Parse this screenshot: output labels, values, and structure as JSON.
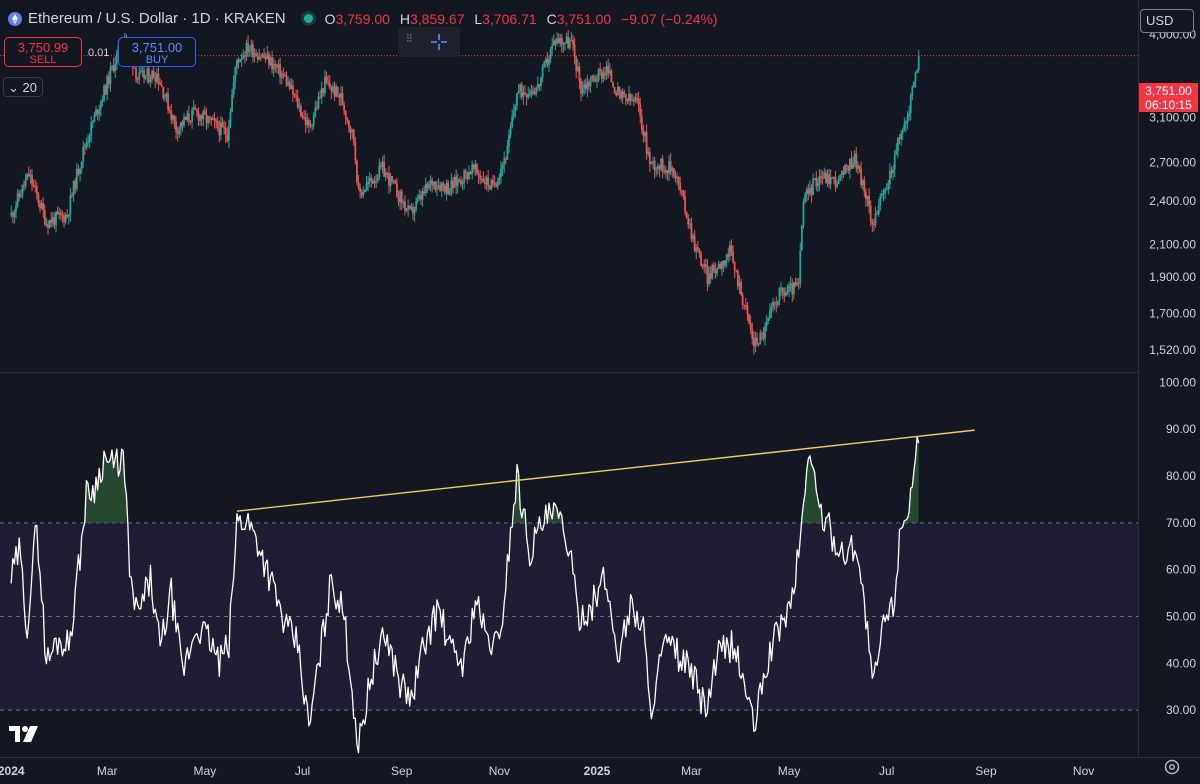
{
  "header": {
    "symbol_title": "Ethereum / U.S. Dollar · 1D · KRAKEN",
    "ohlc": [
      {
        "key": "O",
        "value": "3,759.00"
      },
      {
        "key": "H",
        "value": "3,859.67"
      },
      {
        "key": "L",
        "value": "3,706.71"
      },
      {
        "key": "C",
        "value": "3,751.00"
      },
      {
        "key": "",
        "value": "−9.07 (−0.24%)"
      }
    ]
  },
  "trade": {
    "sell_price": "3,750.99",
    "sell_label": "SELL",
    "buy_price": "3,751.00",
    "buy_label": "BUY",
    "spread": "0.01"
  },
  "interval_badge": "20",
  "currency": "USD",
  "last_price": {
    "price": "3,751.00",
    "countdown": "06:10:15"
  },
  "colors": {
    "up": "#26a69a",
    "down": "#ef5350",
    "rsi_line": "#ffffff",
    "trendline": "#e8d06a",
    "band_fill": "#1f1d33",
    "price_tag": "#f23645"
  },
  "chart_data": [
    {
      "type": "candlestick",
      "title": "Ethereum / U.S. Dollar · 1D · KRAKEN",
      "scale": "log",
      "ylim": [
        1420,
        4450
      ],
      "y_ticks": [
        4000,
        3100,
        2700,
        2400,
        2100,
        1900,
        1700,
        1520
      ],
      "y_tick_labels": [
        "4,000.00",
        "3,100.00",
        "2,700.00",
        "2,400.00",
        "2,100.00",
        "1,900.00",
        "1,700.00",
        "1,520.00"
      ],
      "x_range": [
        "2024-01-01",
        "2025-11-30"
      ],
      "x_ticks": [
        "2024-01-01",
        "2024-03-01",
        "2024-05-01",
        "2024-07-01",
        "2024-09-01",
        "2024-11-01",
        "2025-01-01",
        "2025-03-01",
        "2025-05-01",
        "2025-07-01",
        "2025-09-01",
        "2025-11-01"
      ],
      "x_tick_labels": [
        "2024",
        "Mar",
        "May",
        "Jul",
        "Sep",
        "Nov",
        "2025",
        "Mar",
        "May",
        "Jul",
        "Sep",
        "Nov"
      ],
      "x_tick_bold": [
        true,
        false,
        false,
        false,
        false,
        false,
        true,
        false,
        false,
        false,
        false,
        false
      ],
      "last_price_line": 3751,
      "close_path": [
        [
          "2024-01-01",
          2300
        ],
        [
          "2024-01-12",
          2600
        ],
        [
          "2024-01-23",
          2250
        ],
        [
          "2024-02-05",
          2300
        ],
        [
          "2024-02-15",
          2800
        ],
        [
          "2024-02-29",
          3400
        ],
        [
          "2024-03-12",
          4000
        ],
        [
          "2024-03-20",
          3500
        ],
        [
          "2024-04-01",
          3550
        ],
        [
          "2024-04-13",
          3000
        ],
        [
          "2024-04-25",
          3150
        ],
        [
          "2024-05-05",
          3050
        ],
        [
          "2024-05-15",
          2950
        ],
        [
          "2024-05-21",
          3700
        ],
        [
          "2024-05-28",
          3850
        ],
        [
          "2024-06-10",
          3700
        ],
        [
          "2024-06-20",
          3500
        ],
        [
          "2024-07-05",
          3000
        ],
        [
          "2024-07-15",
          3450
        ],
        [
          "2024-07-25",
          3300
        ],
        [
          "2024-08-02",
          2900
        ],
        [
          "2024-08-05",
          2450
        ],
        [
          "2024-08-20",
          2650
        ],
        [
          "2024-09-06",
          2300
        ],
        [
          "2024-09-20",
          2550
        ],
        [
          "2024-10-01",
          2500
        ],
        [
          "2024-10-15",
          2650
        ],
        [
          "2024-10-28",
          2500
        ],
        [
          "2024-11-06",
          2800
        ],
        [
          "2024-11-12",
          3350
        ],
        [
          "2024-11-25",
          3400
        ],
        [
          "2024-12-06",
          3950
        ],
        [
          "2024-12-16",
          3900
        ],
        [
          "2024-12-22",
          3400
        ],
        [
          "2025-01-07",
          3600
        ],
        [
          "2025-01-15",
          3300
        ],
        [
          "2025-01-26",
          3250
        ],
        [
          "2025-02-03",
          2700
        ],
        [
          "2025-02-18",
          2650
        ],
        [
          "2025-03-03",
          2100
        ],
        [
          "2025-03-11",
          1900
        ],
        [
          "2025-03-25",
          2050
        ],
        [
          "2025-04-09",
          1550
        ],
        [
          "2025-04-15",
          1600
        ],
        [
          "2025-04-24",
          1800
        ],
        [
          "2025-05-07",
          1850
        ],
        [
          "2025-05-10",
          2400
        ],
        [
          "2025-05-20",
          2600
        ],
        [
          "2025-06-01",
          2550
        ],
        [
          "2025-06-11",
          2750
        ],
        [
          "2025-06-22",
          2250
        ],
        [
          "2025-07-01",
          2500
        ],
        [
          "2025-07-10",
          2950
        ],
        [
          "2025-07-14",
          3100
        ],
        [
          "2025-07-21",
          3751
        ]
      ]
    },
    {
      "type": "line",
      "series": [
        {
          "values_path": [
            [
              "2024-01-01",
              58
            ],
            [
              "2024-01-06",
              64
            ],
            [
              "2024-01-11",
              48
            ],
            [
              "2024-01-17",
              70
            ],
            [
              "2024-01-23",
              40
            ],
            [
              "2024-01-30",
              45
            ],
            [
              "2024-02-06",
              44
            ],
            [
              "2024-02-12",
              60
            ],
            [
              "2024-02-17",
              76
            ],
            [
              "2024-02-23",
              78
            ],
            [
              "2024-02-28",
              84
            ],
            [
              "2024-03-05",
              82
            ],
            [
              "2024-03-11",
              84
            ],
            [
              "2024-03-16",
              56
            ],
            [
              "2024-03-20",
              50
            ],
            [
              "2024-03-28",
              58
            ],
            [
              "2024-04-03",
              43
            ],
            [
              "2024-04-10",
              55
            ],
            [
              "2024-04-17",
              38
            ],
            [
              "2024-04-26",
              48
            ],
            [
              "2024-05-04",
              45
            ],
            [
              "2024-05-10",
              40
            ],
            [
              "2024-05-16",
              44
            ],
            [
              "2024-05-21",
              70
            ],
            [
              "2024-05-27",
              71
            ],
            [
              "2024-06-03",
              66
            ],
            [
              "2024-06-11",
              58
            ],
            [
              "2024-06-20",
              48
            ],
            [
              "2024-06-28",
              44
            ],
            [
              "2024-07-05",
              26
            ],
            [
              "2024-07-12",
              42
            ],
            [
              "2024-07-19",
              58
            ],
            [
              "2024-07-27",
              50
            ],
            [
              "2024-08-05",
              22
            ],
            [
              "2024-08-13",
              38
            ],
            [
              "2024-08-22",
              46
            ],
            [
              "2024-08-31",
              36
            ],
            [
              "2024-09-07",
              32
            ],
            [
              "2024-09-15",
              44
            ],
            [
              "2024-09-24",
              52
            ],
            [
              "2024-10-01",
              43
            ],
            [
              "2024-10-10",
              40
            ],
            [
              "2024-10-17",
              54
            ],
            [
              "2024-10-24",
              45
            ],
            [
              "2024-11-01",
              44
            ],
            [
              "2024-11-08",
              68
            ],
            [
              "2024-11-12",
              80
            ],
            [
              "2024-11-20",
              64
            ],
            [
              "2024-11-28",
              70
            ],
            [
              "2024-12-06",
              72
            ],
            [
              "2024-12-14",
              66
            ],
            [
              "2024-12-20",
              50
            ],
            [
              "2024-12-28",
              52
            ],
            [
              "2025-01-06",
              58
            ],
            [
              "2025-01-14",
              42
            ],
            [
              "2025-01-22",
              52
            ],
            [
              "2025-01-30",
              48
            ],
            [
              "2025-02-03",
              30
            ],
            [
              "2025-02-12",
              44
            ],
            [
              "2025-02-20",
              42
            ],
            [
              "2025-03-01",
              38
            ],
            [
              "2025-03-10",
              30
            ],
            [
              "2025-03-18",
              42
            ],
            [
              "2025-03-27",
              44
            ],
            [
              "2025-04-03",
              36
            ],
            [
              "2025-04-09",
              26
            ],
            [
              "2025-04-17",
              40
            ],
            [
              "2025-04-25",
              48
            ],
            [
              "2025-05-02",
              52
            ],
            [
              "2025-05-08",
              66
            ],
            [
              "2025-05-13",
              86
            ],
            [
              "2025-05-20",
              73
            ],
            [
              "2025-05-27",
              68
            ],
            [
              "2025-06-04",
              63
            ],
            [
              "2025-06-12",
              66
            ],
            [
              "2025-06-20",
              44
            ],
            [
              "2025-06-22",
              34
            ],
            [
              "2025-06-30",
              50
            ],
            [
              "2025-07-05",
              52
            ],
            [
              "2025-07-10",
              70
            ],
            [
              "2025-07-14",
              73
            ],
            [
              "2025-07-21",
              87
            ]
          ]
        }
      ],
      "ylim": [
        20,
        102
      ],
      "y_ticks": [
        100,
        90,
        80,
        70,
        60,
        50,
        40,
        30
      ],
      "y_tick_labels": [
        "100.00",
        "90.00",
        "80.00",
        "70.00",
        "60.00",
        "50.00",
        "40.00",
        "30.00"
      ],
      "band": [
        30,
        70
      ],
      "midline": 50,
      "trendline": [
        [
          "2024-05-21",
          72.5
        ],
        [
          "2025-08-25",
          89.8
        ]
      ]
    }
  ]
}
